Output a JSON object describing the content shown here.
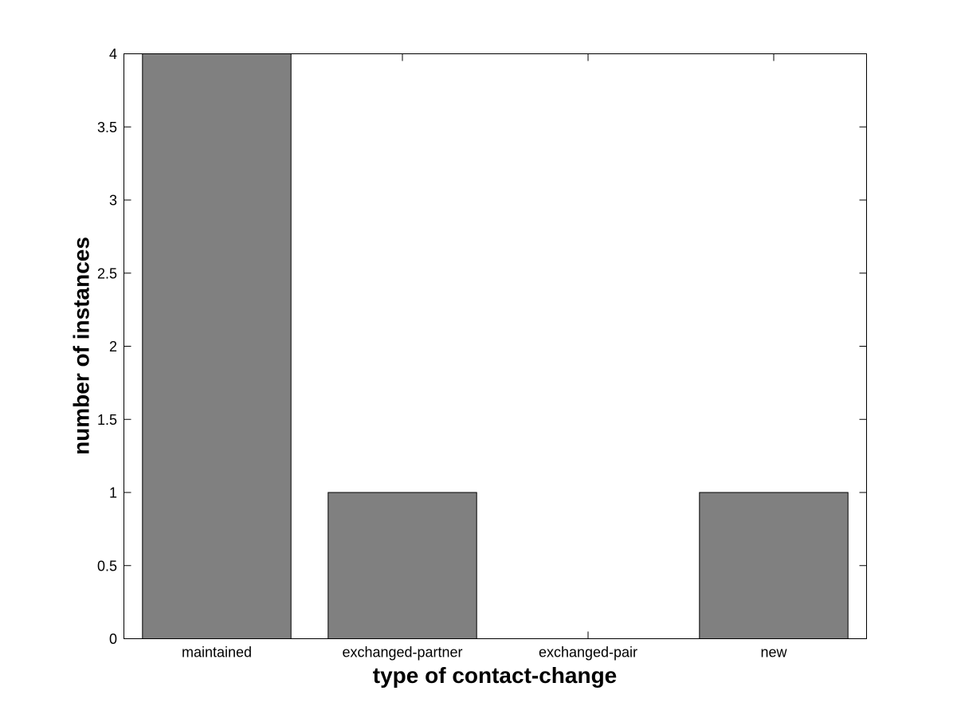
{
  "figure": {
    "background_color": "#ffffff"
  },
  "chart_data": {
    "type": "bar",
    "title": "",
    "categories": [
      "maintained",
      "exchanged-partner",
      "exchanged-pair",
      "new"
    ],
    "values": [
      4,
      1,
      0,
      1
    ],
    "xlabel": "type of contact-change",
    "ylabel": "number of instances",
    "ylim": [
      0,
      4
    ],
    "yticks": [
      0,
      0.5,
      1,
      1.5,
      2,
      2.5,
      3,
      3.5,
      4
    ],
    "ytick_labels": [
      "0",
      "0.5",
      "1",
      "1.5",
      "2",
      "2.5",
      "3",
      "3.5",
      "4"
    ],
    "bar_width_fraction": 0.8,
    "bar_color": "#808080",
    "bar_edge_color": "#000000",
    "axis_color": "#000000",
    "grid": false,
    "legend": null,
    "tick_direction": "in",
    "box": true
  }
}
